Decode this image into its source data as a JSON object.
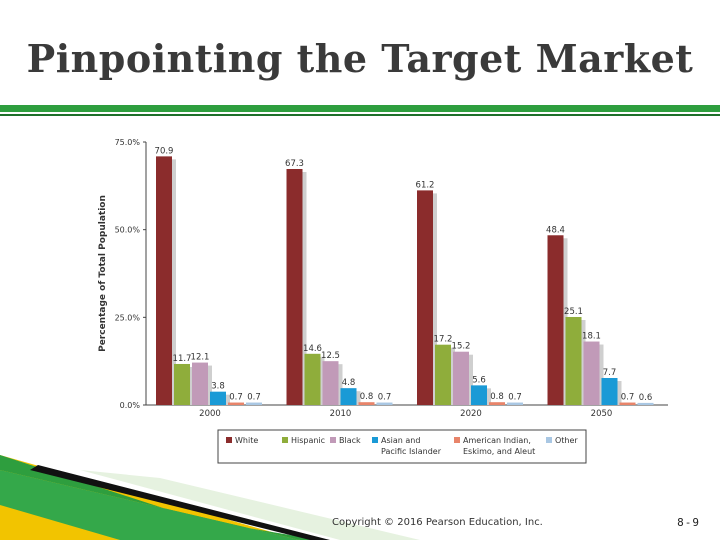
{
  "slide": {
    "title": "Pinpointing the Target Market",
    "copyright": "Copyright © 2016 Pearson Education, Inc.",
    "slide_number": "8-9"
  },
  "colors": {
    "accent_green": "#2e9e3e",
    "accent_yellow": "#f2c400"
  },
  "chart_data": {
    "type": "bar",
    "title": "",
    "xlabel": "",
    "ylabel": "Percentage of Total Population",
    "ylim": [
      0,
      75
    ],
    "yticks": [
      "0.0%",
      "25.0%",
      "50.0%",
      "75.0%"
    ],
    "categories": [
      "2000",
      "2010",
      "2020",
      "2050"
    ],
    "series": [
      {
        "name": "White",
        "color": "#8b2c2c",
        "values": [
          70.9,
          67.3,
          61.2,
          48.4
        ]
      },
      {
        "name": "Hispanic",
        "color": "#8fad3b",
        "values": [
          11.7,
          14.6,
          17.2,
          25.1
        ]
      },
      {
        "name": "Black",
        "color": "#c19ab8",
        "values": [
          12.1,
          12.5,
          15.2,
          18.1
        ]
      },
      {
        "name": "Asian and Pacific Islander",
        "legend_lines": [
          "Asian and",
          "Pacific Islander"
        ],
        "color": "#1a9ad6",
        "values": [
          3.8,
          4.8,
          5.6,
          7.7
        ]
      },
      {
        "name": "American Indian, Eskimo, and Aleut",
        "legend_lines": [
          "American Indian,",
          "Eskimo, and Aleut"
        ],
        "color": "#e8846a",
        "values": [
          0.7,
          0.8,
          0.8,
          0.7
        ]
      },
      {
        "name": "Other",
        "color": "#a9c7e3",
        "values": [
          0.7,
          0.7,
          0.7,
          0.6
        ]
      }
    ],
    "legend_placement": "bottom",
    "grid": false
  }
}
